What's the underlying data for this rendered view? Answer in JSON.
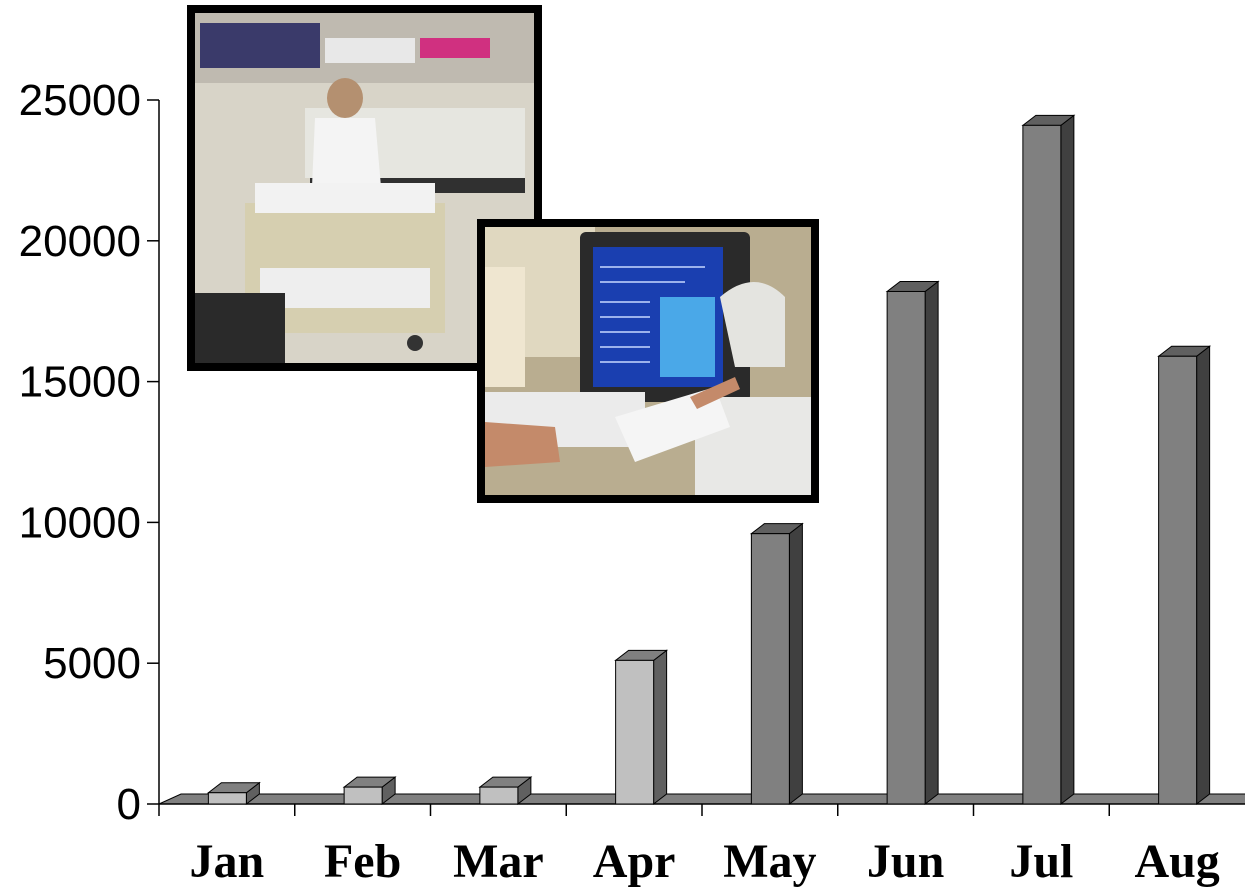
{
  "chart_data": {
    "type": "bar",
    "style": "3d",
    "categories": [
      "Jan",
      "Feb",
      "Mar",
      "Apr",
      "May",
      "Jun",
      "Jul",
      "Aug"
    ],
    "values": [
      400,
      600,
      600,
      5100,
      9600,
      18200,
      24100,
      15900
    ],
    "bar_colors": [
      "#c0c0c0",
      "#c0c0c0",
      "#c0c0c0",
      "#c0c0c0",
      "#808080",
      "#808080",
      "#808080",
      "#808080"
    ],
    "ylim": [
      0,
      25000
    ],
    "yticks": [
      "0",
      "5000",
      "10000",
      "15000",
      "20000",
      "25000"
    ],
    "grid": false,
    "legend": "none",
    "title": "",
    "xlabel": "",
    "ylabel": ""
  },
  "photos": [
    {
      "name": "lab-shelves-photo"
    },
    {
      "name": "computer-scanner-photo"
    }
  ]
}
